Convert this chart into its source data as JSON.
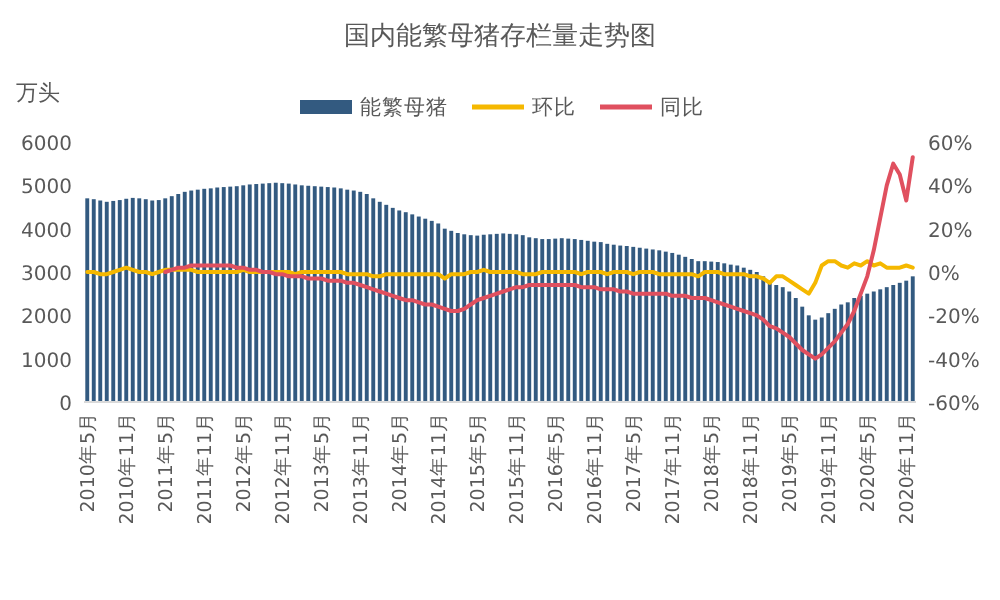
{
  "chart_data": {
    "type": "bar",
    "title": "国内能繁母猪存栏量走势图",
    "ylabel": "万头",
    "categories": [
      "2010年5月",
      null,
      null,
      null,
      null,
      null,
      "2010年11月",
      null,
      null,
      null,
      null,
      null,
      "2011年5月",
      null,
      null,
      null,
      null,
      null,
      "2011年11月",
      null,
      null,
      null,
      null,
      null,
      "2012年5月",
      null,
      null,
      null,
      null,
      null,
      "2012年11月",
      null,
      null,
      null,
      null,
      null,
      "2013年5月",
      null,
      null,
      null,
      null,
      null,
      "2013年11月",
      null,
      null,
      null,
      null,
      null,
      "2014年5月",
      null,
      null,
      null,
      null,
      null,
      "2014年11月",
      null,
      null,
      null,
      null,
      null,
      "2015年5月",
      null,
      null,
      null,
      null,
      null,
      "2015年11月",
      null,
      null,
      null,
      null,
      null,
      "2016年5月",
      null,
      null,
      null,
      null,
      null,
      "2016年11月",
      null,
      null,
      null,
      null,
      null,
      "2017年5月",
      null,
      null,
      null,
      null,
      null,
      "2017年11月",
      null,
      null,
      null,
      null,
      null,
      "2018年5月",
      null,
      null,
      null,
      null,
      null,
      "2018年11月",
      null,
      null,
      null,
      null,
      null,
      "2019年5月",
      null,
      null,
      null,
      null,
      null,
      "2019年11月",
      null,
      null,
      null,
      null,
      null,
      "2020年5月",
      null,
      null,
      null,
      null,
      null,
      "2020年11月",
      null
    ],
    "series": [
      {
        "name": "能繁母猪",
        "color": "#335a80",
        "values": [
          4700,
          4680,
          4650,
          4620,
          4640,
          4660,
          4690,
          4710,
          4700,
          4680,
          4650,
          4660,
          4700,
          4750,
          4800,
          4850,
          4880,
          4900,
          4920,
          4930,
          4950,
          4960,
          4970,
          4980,
          5000,
          5020,
          5030,
          5040,
          5050,
          5060,
          5050,
          5040,
          5020,
          5000,
          4990,
          4980,
          4970,
          4960,
          4950,
          4930,
          4900,
          4880,
          4850,
          4800,
          4700,
          4620,
          4550,
          4480,
          4420,
          4380,
          4330,
          4280,
          4230,
          4180,
          4120,
          4000,
          3950,
          3900,
          3870,
          3850,
          3840,
          3860,
          3870,
          3880,
          3890,
          3880,
          3870,
          3850,
          3800,
          3780,
          3760,
          3760,
          3770,
          3780,
          3770,
          3760,
          3740,
          3720,
          3700,
          3690,
          3650,
          3630,
          3610,
          3600,
          3580,
          3560,
          3540,
          3520,
          3500,
          3470,
          3440,
          3400,
          3350,
          3300,
          3250,
          3250,
          3240,
          3230,
          3200,
          3170,
          3150,
          3100,
          3050,
          3000,
          2900,
          2750,
          2700,
          2650,
          2550,
          2400,
          2200,
          2000,
          1900,
          1950,
          2050,
          2150,
          2250,
          2300,
          2400,
          2450,
          2500,
          2550,
          2600,
          2650,
          2700,
          2750,
          2800,
          2900
        ]
      },
      {
        "name": "环比",
        "type": "line",
        "axis": "y2",
        "color": "#f5b800",
        "values": [
          0,
          0,
          -1,
          -1,
          0,
          1,
          2,
          1,
          0,
          0,
          -1,
          0,
          1,
          1,
          1,
          1,
          1,
          0,
          0,
          0,
          0,
          0,
          0,
          0,
          1,
          0,
          0,
          0,
          0,
          0,
          0,
          0,
          -1,
          0,
          0,
          0,
          0,
          0,
          0,
          0,
          -1,
          -1,
          -1,
          -1,
          -2,
          -2,
          -1,
          -1,
          -1,
          -1,
          -1,
          -1,
          -1,
          -1,
          -1,
          -3,
          -1,
          -1,
          -1,
          0,
          0,
          1,
          0,
          0,
          0,
          0,
          0,
          -1,
          -1,
          -1,
          0,
          0,
          0,
          0,
          0,
          0,
          -1,
          0,
          0,
          0,
          -1,
          0,
          0,
          0,
          -1,
          0,
          0,
          0,
          -1,
          -1,
          -1,
          -1,
          -1,
          -1,
          -2,
          0,
          0,
          0,
          -1,
          -1,
          -1,
          -1,
          -2,
          -2,
          -3,
          -5,
          -2,
          -2,
          -4,
          -6,
          -8,
          -10,
          -5,
          3,
          5,
          5,
          3,
          2,
          4,
          3,
          5,
          3,
          4,
          2,
          2,
          2,
          3,
          2
        ]
      },
      {
        "name": "同比",
        "type": "line",
        "axis": "y2",
        "color": "#e0505f",
        "values": [
          null,
          null,
          null,
          null,
          null,
          null,
          null,
          null,
          null,
          null,
          null,
          null,
          0,
          1,
          2,
          2,
          3,
          3,
          3,
          3,
          3,
          3,
          3,
          2,
          2,
          1,
          1,
          0,
          0,
          -1,
          -1,
          -2,
          -2,
          -2,
          -3,
          -3,
          -3,
          -4,
          -4,
          -4,
          -5,
          -5,
          -6,
          -7,
          -8,
          -9,
          -10,
          -11,
          -12,
          -13,
          -13,
          -14,
          -15,
          -15,
          -16,
          -17,
          -18,
          -18,
          -17,
          -15,
          -13,
          -12,
          -11,
          -10,
          -9,
          -8,
          -7,
          -7,
          -6,
          -6,
          -6,
          -6,
          -6,
          -6,
          -6,
          -6,
          -7,
          -7,
          -7,
          -8,
          -8,
          -8,
          -9,
          -9,
          -10,
          -10,
          -10,
          -10,
          -10,
          -10,
          -11,
          -11,
          -11,
          -12,
          -12,
          -12,
          -13,
          -14,
          -15,
          -16,
          -17,
          -18,
          -19,
          -20,
          -22,
          -25,
          -26,
          -28,
          -30,
          -33,
          -36,
          -38,
          -40,
          -38,
          -35,
          -32,
          -28,
          -24,
          -18,
          -10,
          -2,
          10,
          25,
          40,
          50,
          45,
          33,
          53
        ]
      }
    ],
    "ylim": [
      0,
      6000
    ],
    "yticks": [
      0,
      1000,
      2000,
      3000,
      4000,
      5000,
      6000
    ],
    "y2lim": [
      -60,
      60
    ],
    "y2ticks": [
      {
        "value": -60,
        "label": "-60%"
      },
      {
        "value": -40,
        "label": "-40%"
      },
      {
        "value": -20,
        "label": "-20%"
      },
      {
        "value": 0,
        "label": "0%"
      },
      {
        "value": 20,
        "label": "20%"
      },
      {
        "value": 40,
        "label": "40%"
      },
      {
        "value": 60,
        "label": "60%"
      }
    ],
    "legend": "top"
  }
}
